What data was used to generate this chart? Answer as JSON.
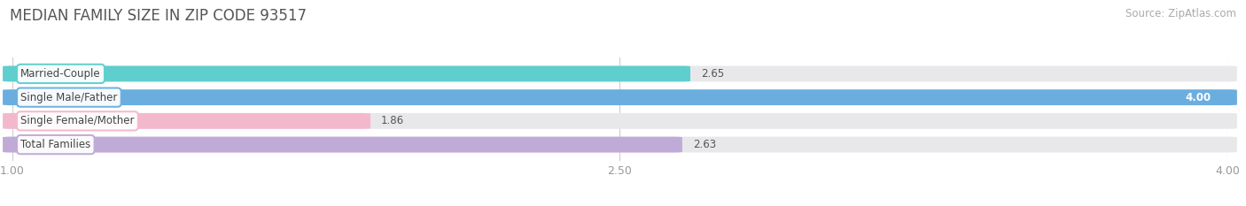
{
  "title": "MEDIAN FAMILY SIZE IN ZIP CODE 93517",
  "source": "Source: ZipAtlas.com",
  "categories": [
    "Married-Couple",
    "Single Male/Father",
    "Single Female/Mother",
    "Total Families"
  ],
  "values": [
    2.65,
    4.0,
    1.86,
    2.63
  ],
  "bar_colors": [
    "#5ecfcc",
    "#6aaee0",
    "#f4b8cc",
    "#c0aad8"
  ],
  "bar_bg_color": "#e8e8eb",
  "xlim": [
    1.0,
    4.0
  ],
  "xticks": [
    1.0,
    2.5,
    4.0
  ],
  "value_labels": [
    "2.65",
    "4.00",
    "1.86",
    "2.63"
  ],
  "title_fontsize": 12,
  "source_fontsize": 8.5,
  "label_fontsize": 8.5,
  "tick_fontsize": 9,
  "figsize": [
    14.06,
    2.33
  ],
  "dpi": 100
}
